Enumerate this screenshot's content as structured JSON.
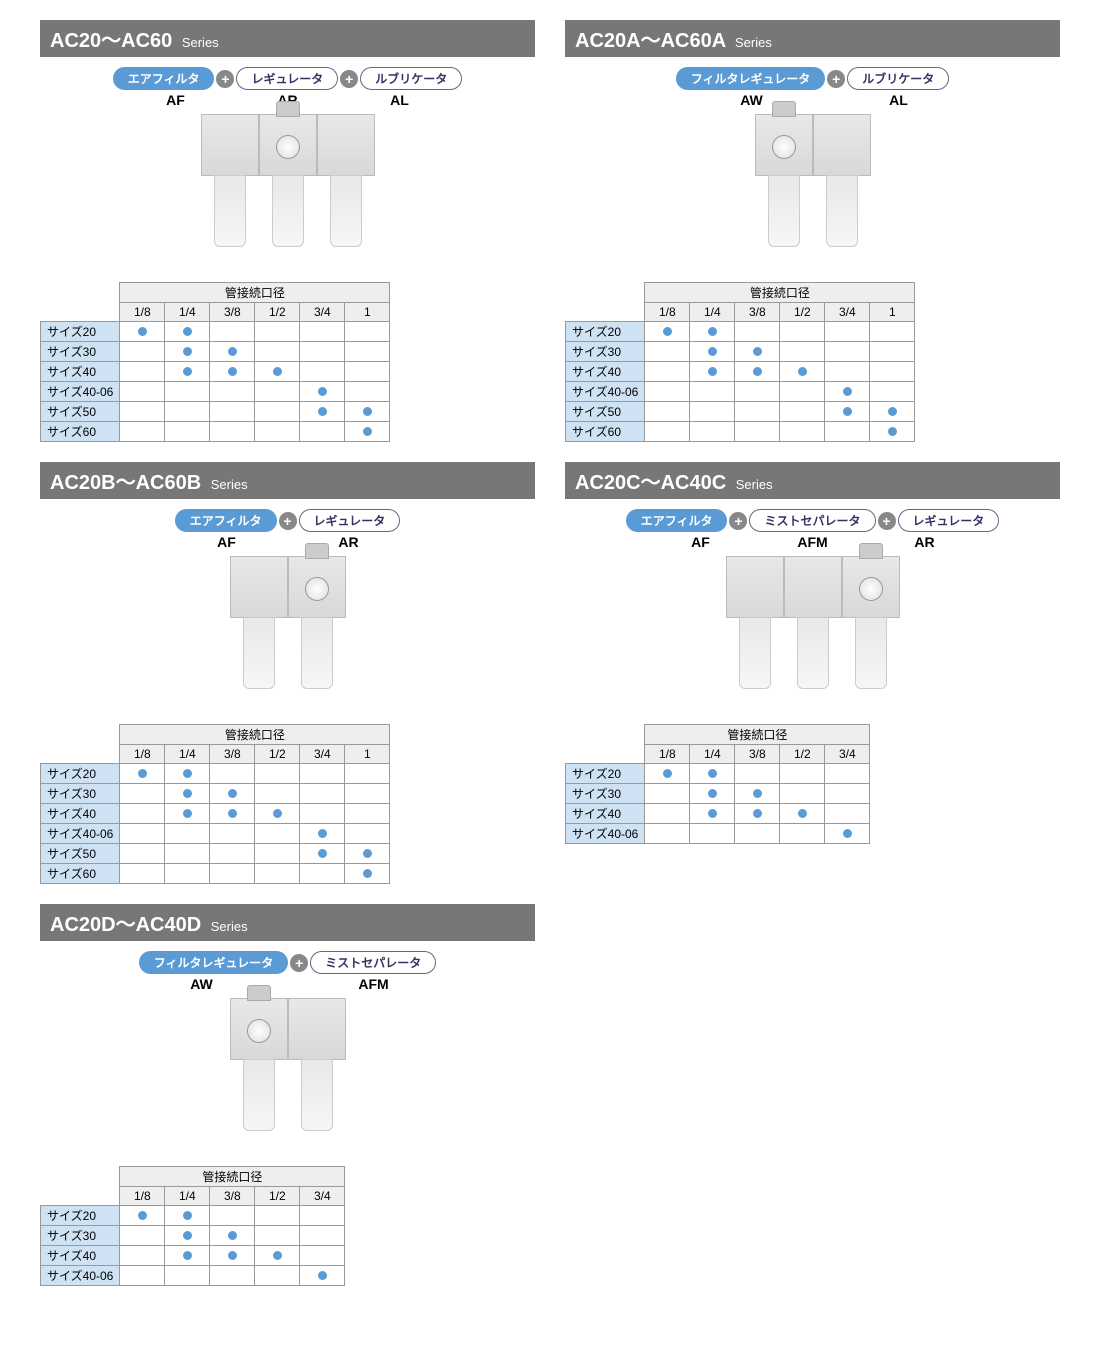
{
  "colors": {
    "titlebar_bg": "#777777",
    "titlebar_fg": "#ffffff",
    "pill_blue_bg": "#5b9bd5",
    "pill_blue_fg": "#ffffff",
    "pill_outline_border": "#666688",
    "plus_bg": "#888888",
    "dot": "#5b9bd5",
    "rowhead_bg": "#cfe2f3",
    "th_bg": "#eeeeee",
    "border": "#999999"
  },
  "common": {
    "series_suffix": "Series",
    "table_header": "管接続口径",
    "plus": "+"
  },
  "panels": [
    {
      "title": "AC20～AC60",
      "pills": [
        {
          "text": "エアフィルタ",
          "variant": "blue"
        },
        {
          "text": "レギュレータ",
          "variant": "outline"
        },
        {
          "text": "ルブリケータ",
          "variant": "outline"
        }
      ],
      "sublabels": [
        "AF",
        "AR",
        "AL"
      ],
      "units": 3,
      "columns": [
        "1/8",
        "1/4",
        "3/8",
        "1/2",
        "3/4",
        "1"
      ],
      "rows": [
        {
          "label": "サイズ20",
          "dots": [
            1,
            1,
            0,
            0,
            0,
            0
          ]
        },
        {
          "label": "サイズ30",
          "dots": [
            0,
            1,
            1,
            0,
            0,
            0
          ]
        },
        {
          "label": "サイズ40",
          "dots": [
            0,
            1,
            1,
            1,
            0,
            0
          ]
        },
        {
          "label": "サイズ40-06",
          "dots": [
            0,
            0,
            0,
            0,
            1,
            0
          ]
        },
        {
          "label": "サイズ50",
          "dots": [
            0,
            0,
            0,
            0,
            1,
            1
          ]
        },
        {
          "label": "サイズ60",
          "dots": [
            0,
            0,
            0,
            0,
            0,
            1
          ]
        }
      ]
    },
    {
      "title": "AC20A～AC60A",
      "pills": [
        {
          "text": "フィルタレギュレータ",
          "variant": "blue"
        },
        {
          "text": "ルブリケータ",
          "variant": "outline"
        }
      ],
      "sublabels": [
        "AW",
        "AL"
      ],
      "units": 2,
      "columns": [
        "1/8",
        "1/4",
        "3/8",
        "1/2",
        "3/4",
        "1"
      ],
      "rows": [
        {
          "label": "サイズ20",
          "dots": [
            1,
            1,
            0,
            0,
            0,
            0
          ]
        },
        {
          "label": "サイズ30",
          "dots": [
            0,
            1,
            1,
            0,
            0,
            0
          ]
        },
        {
          "label": "サイズ40",
          "dots": [
            0,
            1,
            1,
            1,
            0,
            0
          ]
        },
        {
          "label": "サイズ40-06",
          "dots": [
            0,
            0,
            0,
            0,
            1,
            0
          ]
        },
        {
          "label": "サイズ50",
          "dots": [
            0,
            0,
            0,
            0,
            1,
            1
          ]
        },
        {
          "label": "サイズ60",
          "dots": [
            0,
            0,
            0,
            0,
            0,
            1
          ]
        }
      ]
    },
    {
      "title": "AC20B～AC60B",
      "pills": [
        {
          "text": "エアフィルタ",
          "variant": "blue"
        },
        {
          "text": "レギュレータ",
          "variant": "outline"
        }
      ],
      "sublabels": [
        "AF",
        "AR"
      ],
      "units": 2,
      "columns": [
        "1/8",
        "1/4",
        "3/8",
        "1/2",
        "3/4",
        "1"
      ],
      "rows": [
        {
          "label": "サイズ20",
          "dots": [
            1,
            1,
            0,
            0,
            0,
            0
          ]
        },
        {
          "label": "サイズ30",
          "dots": [
            0,
            1,
            1,
            0,
            0,
            0
          ]
        },
        {
          "label": "サイズ40",
          "dots": [
            0,
            1,
            1,
            1,
            0,
            0
          ]
        },
        {
          "label": "サイズ40-06",
          "dots": [
            0,
            0,
            0,
            0,
            1,
            0
          ]
        },
        {
          "label": "サイズ50",
          "dots": [
            0,
            0,
            0,
            0,
            1,
            1
          ]
        },
        {
          "label": "サイズ60",
          "dots": [
            0,
            0,
            0,
            0,
            0,
            1
          ]
        }
      ]
    },
    {
      "title": "AC20C～AC40C",
      "pills": [
        {
          "text": "エアフィルタ",
          "variant": "blue"
        },
        {
          "text": "ミストセパレータ",
          "variant": "outline"
        },
        {
          "text": "レギュレータ",
          "variant": "outline"
        }
      ],
      "sublabels": [
        "AF",
        "AFM",
        "AR"
      ],
      "units": 3,
      "columns": [
        "1/8",
        "1/4",
        "3/8",
        "1/2",
        "3/4"
      ],
      "rows": [
        {
          "label": "サイズ20",
          "dots": [
            1,
            1,
            0,
            0,
            0
          ]
        },
        {
          "label": "サイズ30",
          "dots": [
            0,
            1,
            1,
            0,
            0
          ]
        },
        {
          "label": "サイズ40",
          "dots": [
            0,
            1,
            1,
            1,
            0
          ]
        },
        {
          "label": "サイズ40-06",
          "dots": [
            0,
            0,
            0,
            0,
            1
          ]
        }
      ]
    },
    {
      "title": "AC20D～AC40D",
      "pills": [
        {
          "text": "フィルタレギュレータ",
          "variant": "blue"
        },
        {
          "text": "ミストセパレータ",
          "variant": "outline"
        }
      ],
      "sublabels": [
        "AW",
        "AFM"
      ],
      "units": 2,
      "columns": [
        "1/8",
        "1/4",
        "3/8",
        "1/2",
        "3/4"
      ],
      "rows": [
        {
          "label": "サイズ20",
          "dots": [
            1,
            1,
            0,
            0,
            0
          ]
        },
        {
          "label": "サイズ30",
          "dots": [
            0,
            1,
            1,
            0,
            0
          ]
        },
        {
          "label": "サイズ40",
          "dots": [
            0,
            1,
            1,
            1,
            0
          ]
        },
        {
          "label": "サイズ40-06",
          "dots": [
            0,
            0,
            0,
            0,
            1
          ]
        }
      ]
    }
  ]
}
